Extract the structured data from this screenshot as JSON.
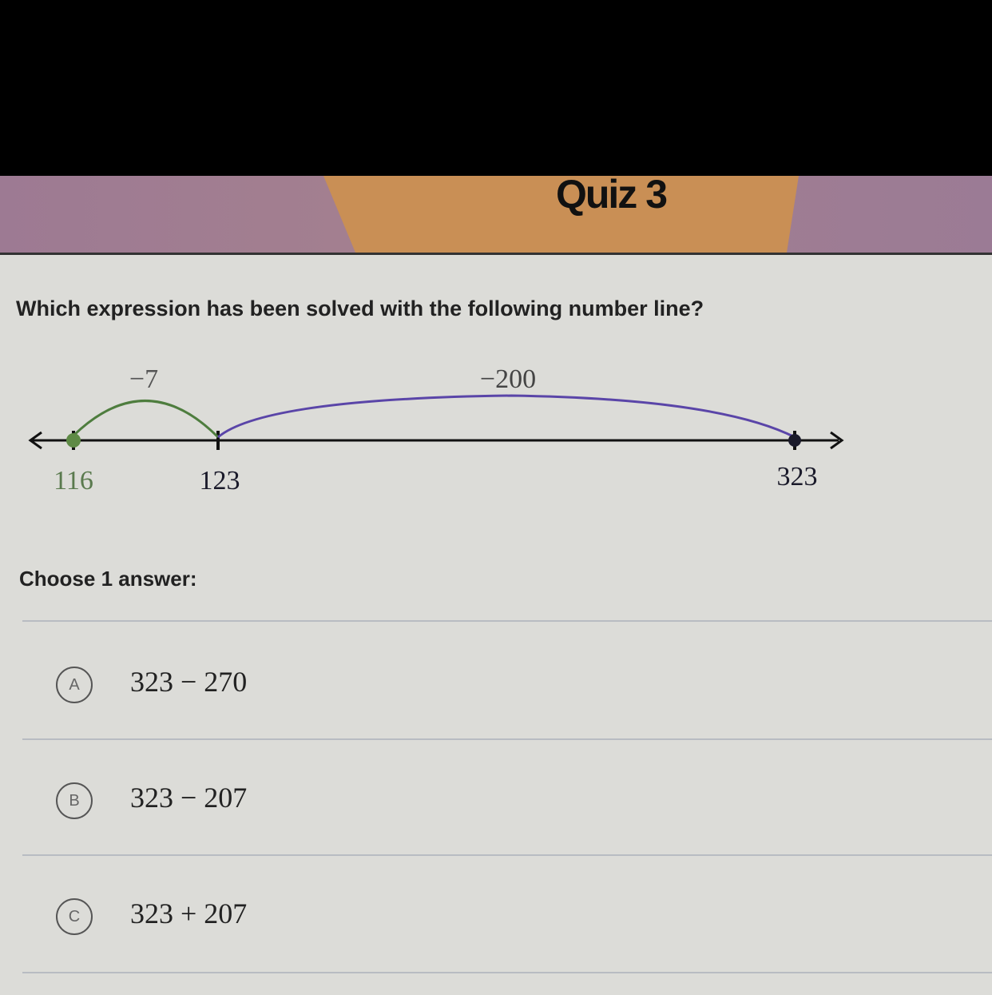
{
  "header": {
    "title": "Quiz 3"
  },
  "question": {
    "text": "Which expression has been solved with the following number line?"
  },
  "number_line": {
    "ticks": [
      {
        "value": "116",
        "color": "#5a7a4e"
      },
      {
        "value": "123",
        "color": "#1a1a2a"
      },
      {
        "value": "323",
        "color": "#1a1a2a"
      }
    ],
    "jumps": [
      {
        "label": "−7",
        "from": 123,
        "to": 116,
        "color": "#4e7d3e"
      },
      {
        "label": "−200",
        "from": 323,
        "to": 123,
        "color": "#5a45a8"
      }
    ]
  },
  "prompt": {
    "text": "Choose 1 answer:"
  },
  "options": [
    {
      "letter": "A",
      "expression": "323 − 270"
    },
    {
      "letter": "B",
      "expression": "323 − 207"
    },
    {
      "letter": "C",
      "expression": "323 + 207"
    }
  ]
}
